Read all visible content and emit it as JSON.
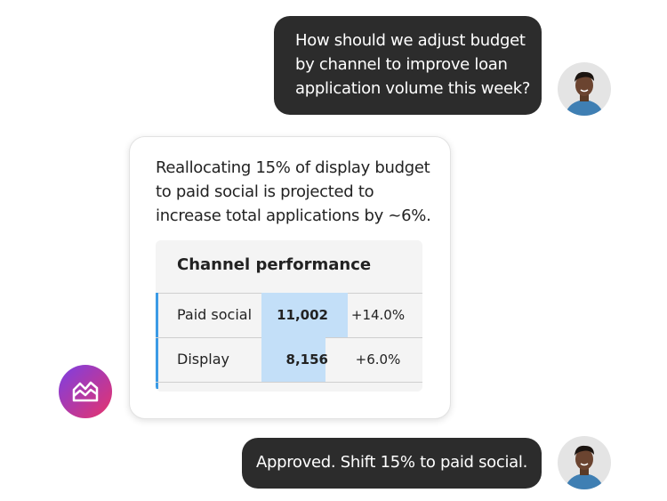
{
  "messages": [
    {
      "role": "user",
      "lines": [
        "How should we adjust budget",
        "by channel to improve loan",
        "application volume this week?"
      ]
    },
    {
      "role": "assistant",
      "lines": [
        "Reallocating 15% of display budget",
        "to paid social is projected to",
        "increase total applications by ~6%."
      ],
      "table": {
        "title": "Channel performance",
        "rows": [
          {
            "channel": "Paid social",
            "value": 11002,
            "value_label": "11,002",
            "change": "+14.0%"
          },
          {
            "channel": "Display",
            "value": 8156,
            "value_label": "8,156",
            "change": "+6.0%"
          }
        ]
      }
    },
    {
      "role": "user",
      "lines": [
        "Approved. Shift 15% to paid social."
      ]
    }
  ]
}
